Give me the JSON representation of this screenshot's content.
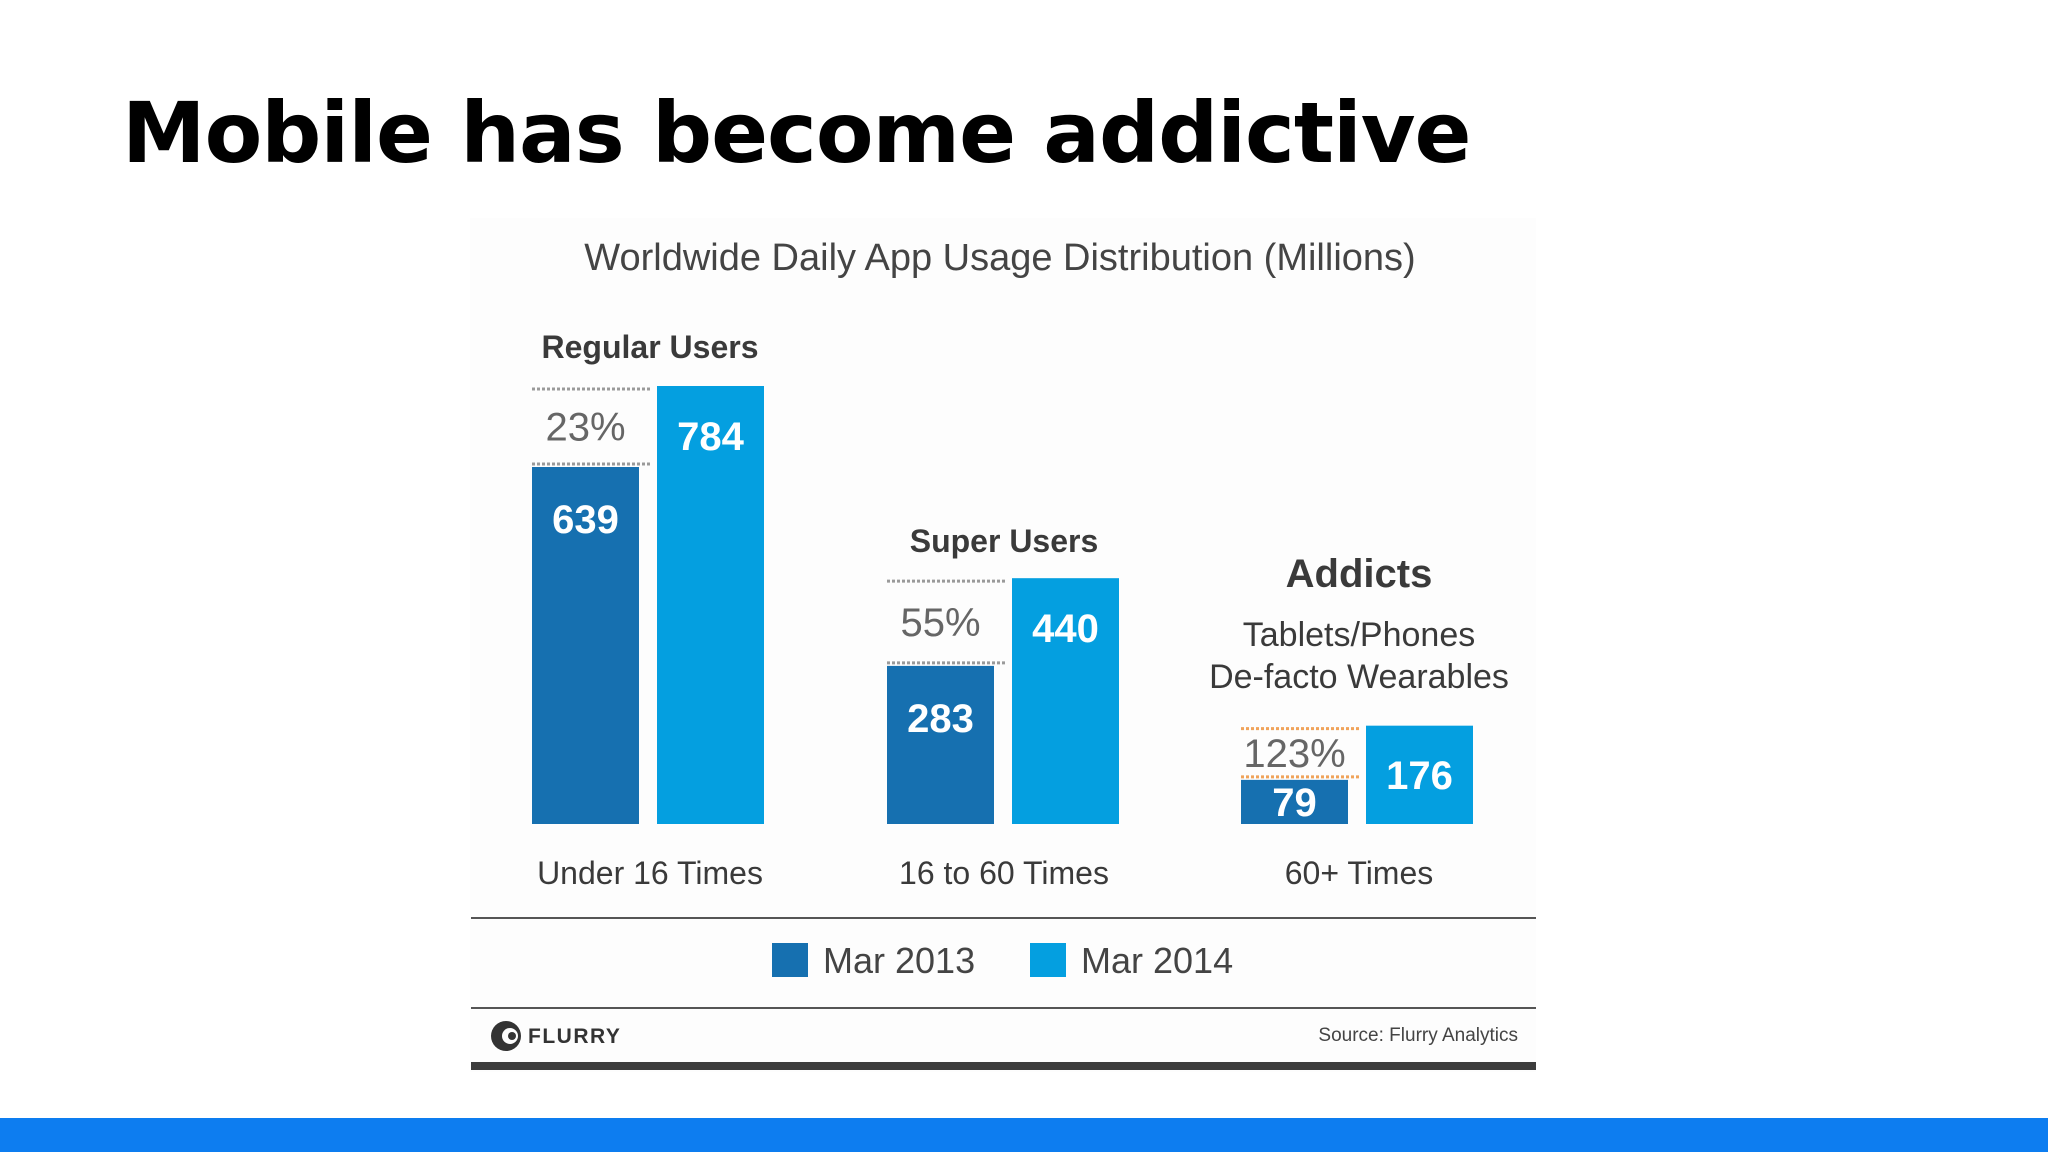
{
  "slide": {
    "title": "Mobile has become addictive",
    "accent_color": "#0d7df0"
  },
  "chart_data": {
    "type": "bar",
    "title": "Worldwide Daily App Usage Distribution (Millions)",
    "categories": [
      "Under 16 Times",
      "16 to 60 Times",
      "60+ Times"
    ],
    "group_labels": [
      "Regular Users",
      "Super Users",
      "Addicts"
    ],
    "addicts_subtitle": [
      "Tablets/Phones",
      "De-facto Wearables"
    ],
    "growth_labels": [
      "23%",
      "55%",
      "123%"
    ],
    "series": [
      {
        "name": "Mar 2013",
        "values": [
          639,
          283,
          79
        ],
        "color": "#1670b0"
      },
      {
        "name": "Mar 2014",
        "values": [
          784,
          440,
          176
        ],
        "color": "#049fe0"
      }
    ],
    "ylim": [
      0,
      784
    ],
    "grid": false,
    "legend_position": "bottom",
    "highlight_color": "#f0a35a",
    "logo_text": "FLURRY",
    "source": "Source: Flurry Analytics"
  }
}
